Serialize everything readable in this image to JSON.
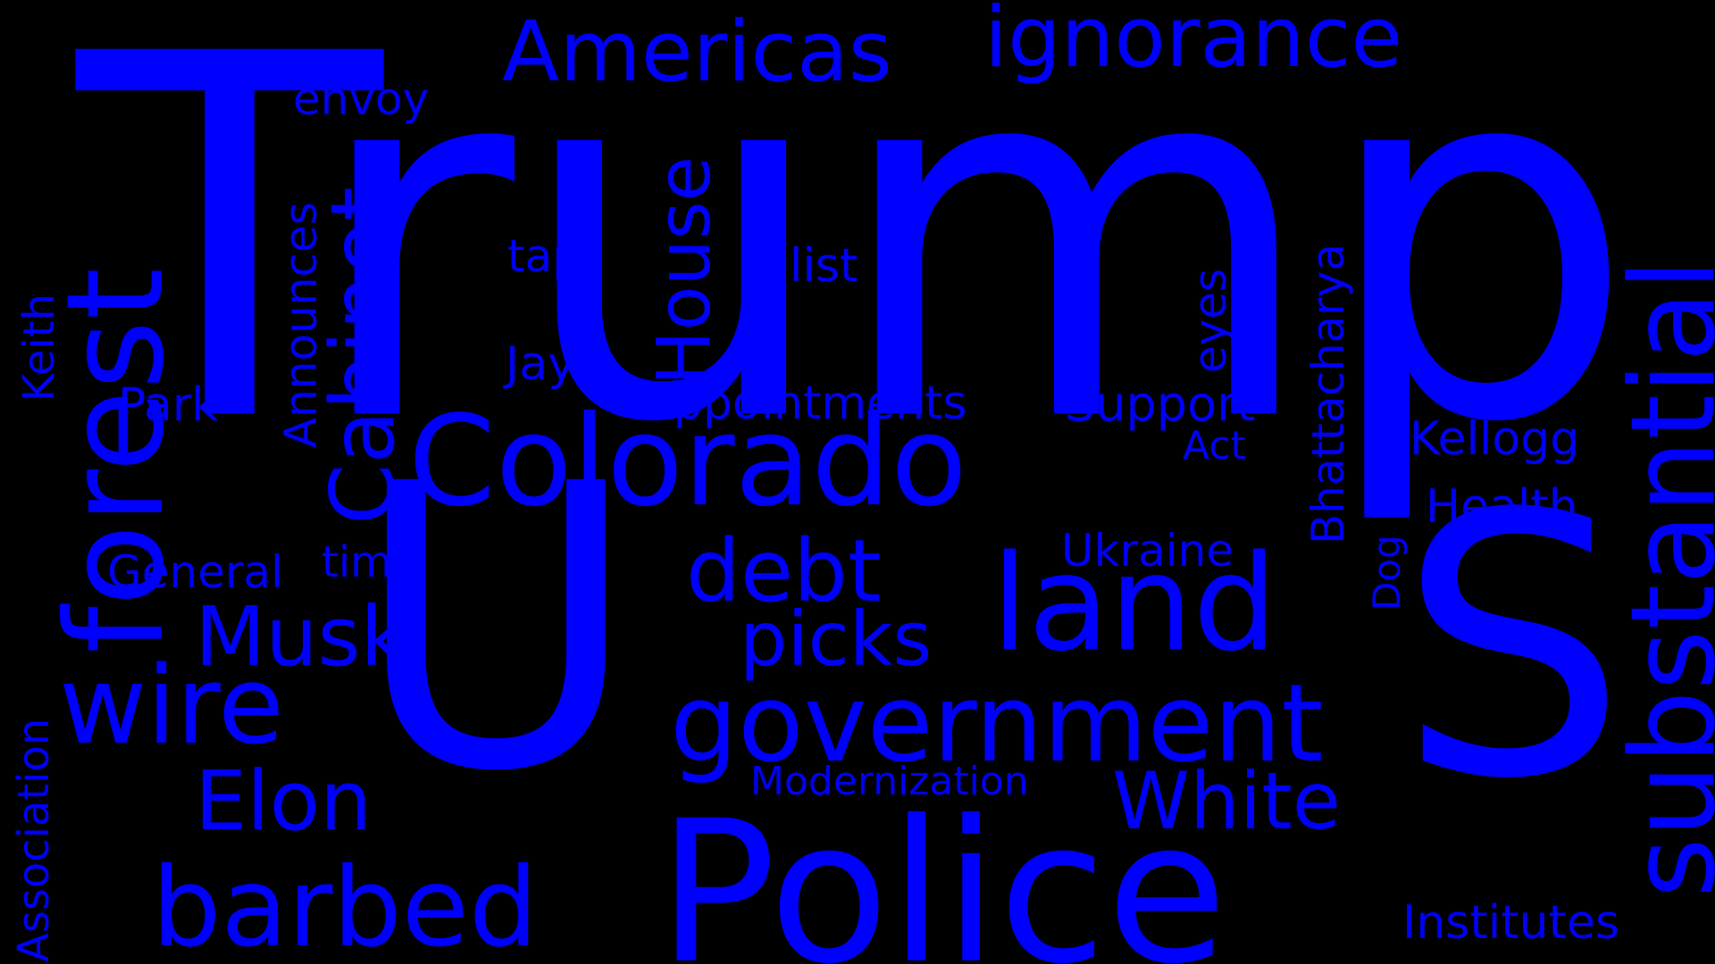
{
  "cloud": {
    "background": "#000000",
    "word_color": "#0000ff",
    "words": {
      "trump": "Trump",
      "u": "U",
      "s": "S",
      "police": "Police",
      "substantial": "substantial",
      "forest": "forest",
      "colorado": "Colorado",
      "land": "land",
      "government": "government",
      "wire": "wire",
      "barbed": "barbed",
      "cabinet": "Cabinet",
      "americas": "Americas",
      "ignorance": "ignorance",
      "musk": "Musk",
      "elon": "Elon",
      "debt": "debt",
      "picks": "picks",
      "white": "White",
      "house": "House",
      "appointments": "appointments",
      "support": "Support",
      "kellogg": "Kellogg",
      "health": "Health",
      "ukraine": "Ukraine",
      "institutes": "Institutes",
      "bhattacharya": "Bhattacharya",
      "modernization": "Modernization",
      "announces": "Announces",
      "general": "General",
      "time": "time",
      "park": "Park",
      "keith": "Keith",
      "association": "Association",
      "envoy": "envoy",
      "taps": "taps",
      "list": "list",
      "jay": "Jay",
      "eyes": "eyes",
      "act": "Act",
      "dog": "Dog"
    }
  }
}
